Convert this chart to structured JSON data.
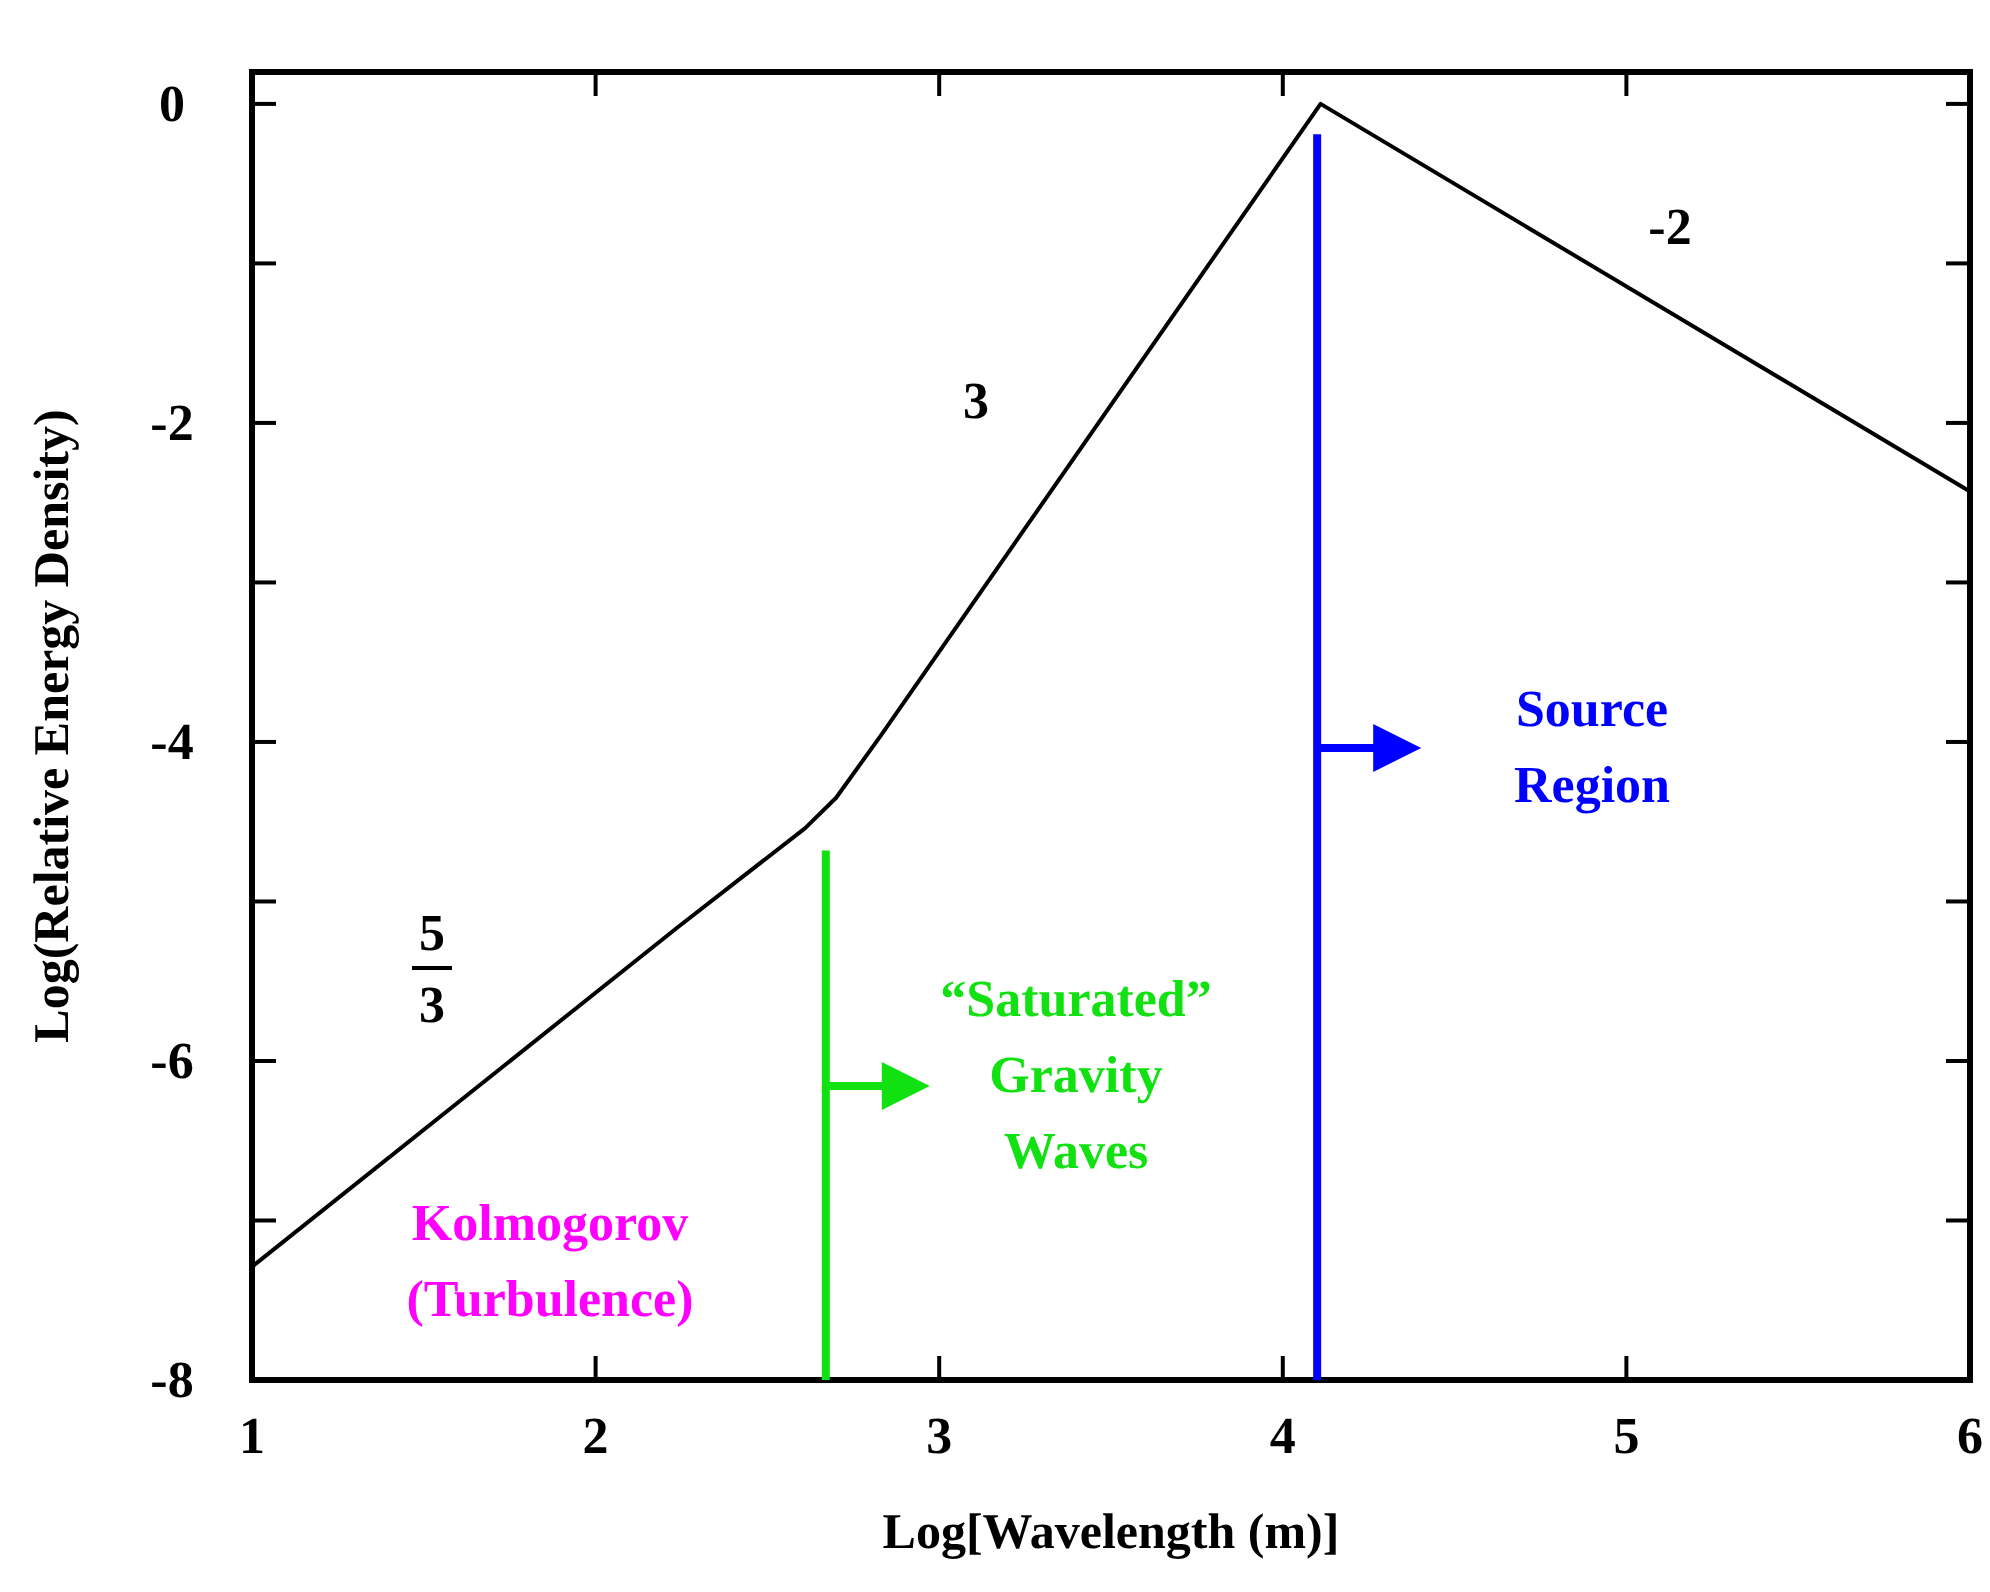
{
  "chart_data": {
    "type": "line",
    "xlabel": "Log[Wavelength (m)]",
    "ylabel": "Log(Relative Energy Density)",
    "xlim": [
      1,
      6
    ],
    "ylim": [
      -8,
      0.2
    ],
    "xticks": [
      1,
      2,
      3,
      4,
      5,
      6
    ],
    "yticks": [
      {
        "value": 0,
        "label": "0"
      },
      {
        "value": -1,
        "label": null
      },
      {
        "value": -2,
        "label": "-2"
      },
      {
        "value": -3,
        "label": null
      },
      {
        "value": -4,
        "label": "-4"
      },
      {
        "value": -5,
        "label": null
      },
      {
        "value": -6,
        "label": "-6"
      },
      {
        "value": -7,
        "label": null
      },
      {
        "value": -8,
        "label": "-8"
      }
    ],
    "grid": false,
    "marker": "none",
    "line_style": "solid",
    "series": [
      {
        "color": "#000000",
        "x": [
          1,
          2.24,
          2.61,
          2.7,
          2.83,
          4.11,
          6
        ],
        "values": [
          -7.29,
          -5.16,
          -4.54,
          -4.35,
          -3.96,
          0,
          -2.43
        ]
      },
      {
        "color": "#11e011",
        "x": [
          2.67,
          2.67
        ],
        "values": [
          -8,
          -4.68
        ]
      },
      {
        "color": "#0000ff",
        "x": [
          4.1,
          4.1
        ],
        "values": [
          -8,
          -0.19
        ]
      }
    ],
    "annotations": [
      "3",
      "-2",
      "5",
      "3",
      "Kolmogorov\n(Turbulence)",
      "“Saturated”\nGravity\nWaves",
      "Source\nRegion"
    ]
  }
}
